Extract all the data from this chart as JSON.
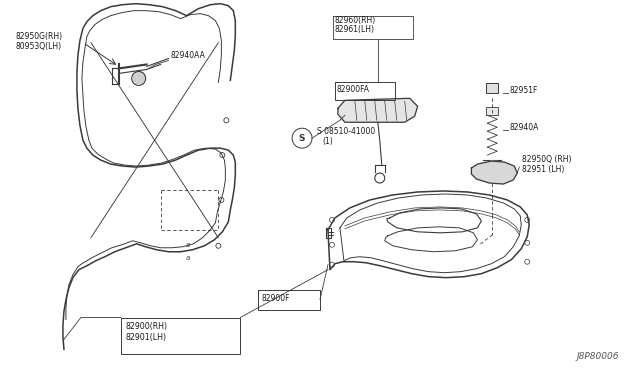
{
  "bg_color": "#ffffff",
  "line_color": "#3a3a3a",
  "text_color": "#1a1a1a",
  "part_id": "J8P80006",
  "fs": 5.5,
  "labels": {
    "lbl_82950G": "82950G(RH)",
    "lbl_80953Q": "80953Q(LH)",
    "lbl_82940AA": "82940AA",
    "lbl_82960": "82960(RH)",
    "lbl_82961": "82961(LH)",
    "lbl_82900FA": "82900FA",
    "lbl_screw": "S 08510-41000",
    "lbl_screw2": "(1)",
    "lbl_82951F": "82951F",
    "lbl_82940A": "82940A",
    "lbl_82950Q": "82950Q (RH)",
    "lbl_82951": "82951 (LH)",
    "lbl_82900F": "82900F",
    "lbl_82900": "82900(RH)",
    "lbl_82901": "82901(LH)"
  }
}
